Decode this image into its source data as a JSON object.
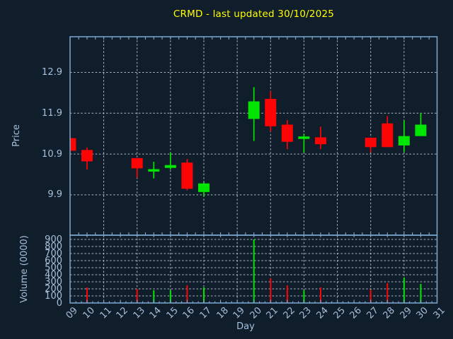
{
  "title": {
    "text": "CRMD - last updated 30/10/2025",
    "color": "#ffff00"
  },
  "colors": {
    "background": "#101d2b",
    "spine": "#7fa8cf",
    "grid": "#ccd4dc",
    "tick_label": "#a4c0dc",
    "title": "#ffff00",
    "up": "#00e600",
    "down": "#ff0404"
  },
  "chart_data": [
    {
      "type": "candlestick",
      "panel": "price",
      "title": "CRMD - last updated 30/10/2025",
      "xlabel": "Day",
      "ylabel": "Price",
      "grid": true,
      "legend": "none",
      "ylim": [
        8.93,
        13.77
      ],
      "xlim_days": [
        9,
        31
      ],
      "y_tick_labels": [
        "12.9",
        "11.9",
        "10.9",
        "9.9"
      ],
      "y_tick_values": [
        12.9,
        11.9,
        10.9,
        9.9
      ],
      "x_tick_labels": [
        "09",
        "10",
        "11",
        "12",
        "13",
        "14",
        "15",
        "16",
        "17",
        "18",
        "19",
        "20",
        "21",
        "22",
        "23",
        "24",
        "25",
        "26",
        "27",
        "28",
        "29",
        "30",
        "31"
      ],
      "x_tick_days": [
        9,
        10,
        11,
        12,
        13,
        14,
        15,
        16,
        17,
        18,
        19,
        20,
        21,
        22,
        23,
        24,
        25,
        26,
        27,
        28,
        29,
        30,
        31
      ],
      "grid_vertical_days": [
        11,
        13,
        15,
        17,
        19,
        21,
        23,
        25,
        27,
        29
      ],
      "series": [
        {
          "day": 9,
          "open": 11.29,
          "high": 11.29,
          "low": 10.98,
          "close": 10.98
        },
        {
          "day": 10,
          "open": 11.0,
          "high": 11.06,
          "low": 10.52,
          "close": 10.72
        },
        {
          "day": 13,
          "open": 10.8,
          "high": 10.8,
          "low": 10.32,
          "close": 10.55
        },
        {
          "day": 14,
          "open": 10.47,
          "high": 10.71,
          "low": 10.3,
          "close": 10.53
        },
        {
          "day": 15,
          "open": 10.56,
          "high": 10.94,
          "low": 10.52,
          "close": 10.63
        },
        {
          "day": 16,
          "open": 10.69,
          "high": 10.78,
          "low": 10.01,
          "close": 10.05
        },
        {
          "day": 17,
          "open": 9.97,
          "high": 10.2,
          "low": 9.85,
          "close": 10.18
        },
        {
          "day": 20,
          "open": 11.76,
          "high": 12.54,
          "low": 11.22,
          "close": 12.19
        },
        {
          "day": 21,
          "open": 12.25,
          "high": 12.44,
          "low": 11.45,
          "close": 11.58
        },
        {
          "day": 22,
          "open": 11.62,
          "high": 11.73,
          "low": 11.02,
          "close": 11.2
        },
        {
          "day": 23,
          "open": 11.27,
          "high": 11.4,
          "low": 10.94,
          "close": 11.33
        },
        {
          "day": 24,
          "open": 11.31,
          "high": 11.57,
          "low": 11.02,
          "close": 11.14
        },
        {
          "day": 27,
          "open": 11.3,
          "high": 11.3,
          "low": 10.94,
          "close": 11.07
        },
        {
          "day": 28,
          "open": 11.65,
          "high": 11.83,
          "low": 11.07,
          "close": 11.07
        },
        {
          "day": 29,
          "open": 11.11,
          "high": 11.72,
          "low": 10.95,
          "close": 11.34
        },
        {
          "day": 30,
          "open": 11.34,
          "high": 11.9,
          "low": 11.34,
          "close": 11.62
        }
      ]
    },
    {
      "type": "bar",
      "panel": "volume",
      "ylabel": "Volume (0000)",
      "grid": true,
      "ylim": [
        0,
        960
      ],
      "y_tick_labels": [
        "900",
        "800",
        "700",
        "600",
        "500",
        "400",
        "300",
        "200",
        "100",
        "0"
      ],
      "y_tick_values": [
        900,
        800,
        700,
        600,
        500,
        400,
        300,
        200,
        100,
        0
      ],
      "series": [
        {
          "day": 10,
          "volume": 220
        },
        {
          "day": 13,
          "volume": 200
        },
        {
          "day": 14,
          "volume": 180
        },
        {
          "day": 15,
          "volume": 180
        },
        {
          "day": 16,
          "volume": 250
        },
        {
          "day": 17,
          "volume": 220
        },
        {
          "day": 20,
          "volume": 900
        },
        {
          "day": 21,
          "volume": 350
        },
        {
          "day": 22,
          "volume": 250
        },
        {
          "day": 23,
          "volume": 180
        },
        {
          "day": 24,
          "volume": 220
        },
        {
          "day": 27,
          "volume": 190
        },
        {
          "day": 28,
          "volume": 280
        },
        {
          "day": 29,
          "volume": 360
        },
        {
          "day": 30,
          "volume": 270
        }
      ]
    }
  ]
}
